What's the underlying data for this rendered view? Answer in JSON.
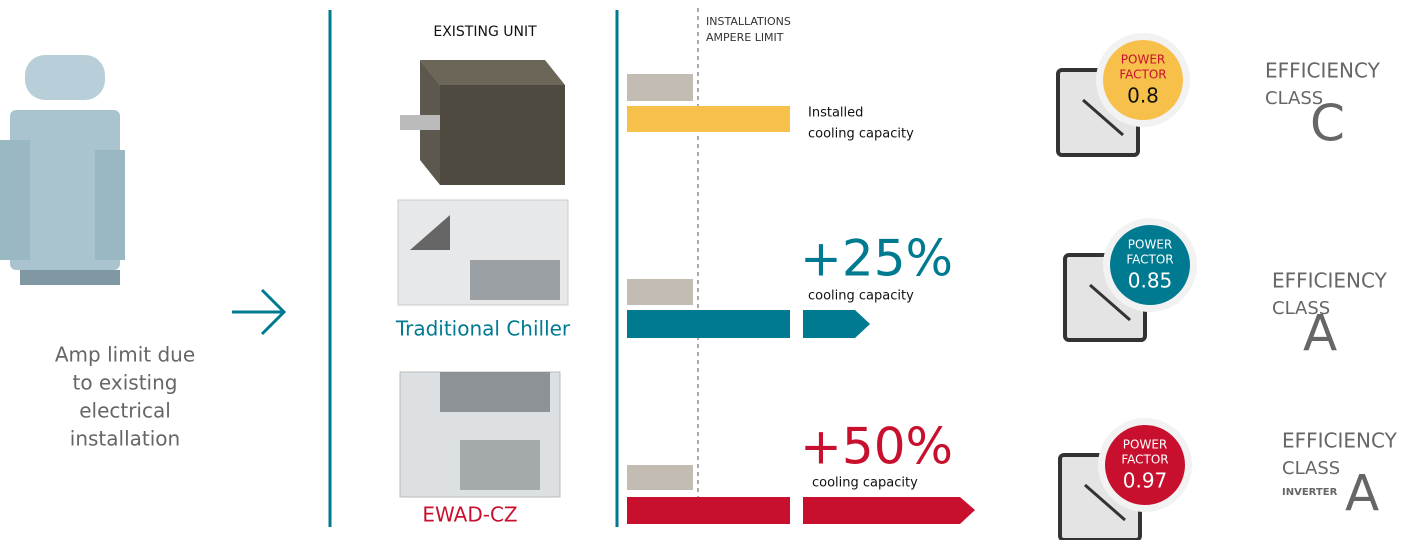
{
  "left": {
    "caption": [
      "Amp limit due",
      "to existing",
      "electrical",
      "installation"
    ]
  },
  "limit_label": [
    "INSTALLATIONS",
    "AMPERE LIMIT"
  ],
  "rows": [
    {
      "unit": "EXISTING UNIT",
      "caption": [
        "Installed",
        "cooling capacity"
      ],
      "power_factor": {
        "label": [
          "POWER",
          "FACTOR"
        ],
        "value": "0.8"
      },
      "efficiency": {
        "label": [
          "EFFICIENCY",
          "CLASS"
        ],
        "class": "C"
      }
    },
    {
      "unit": "Traditional Chiller",
      "increase": "+25%",
      "caption": [
        "cooling capacity"
      ],
      "power_factor": {
        "label": [
          "POWER",
          "FACTOR"
        ],
        "value": "0.85"
      },
      "efficiency": {
        "label": [
          "EFFICIENCY",
          "CLASS"
        ],
        "class": "A"
      }
    },
    {
      "unit": "EWAD-CZ",
      "increase": "+50%",
      "caption": [
        "cooling capacity"
      ],
      "power_factor": {
        "label": [
          "POWER",
          "FACTOR"
        ],
        "value": "0.97"
      },
      "efficiency": {
        "label": [
          "EFFICIENCY",
          "CLASS"
        ],
        "class": "A",
        "note": "INVERTER"
      }
    }
  ]
}
